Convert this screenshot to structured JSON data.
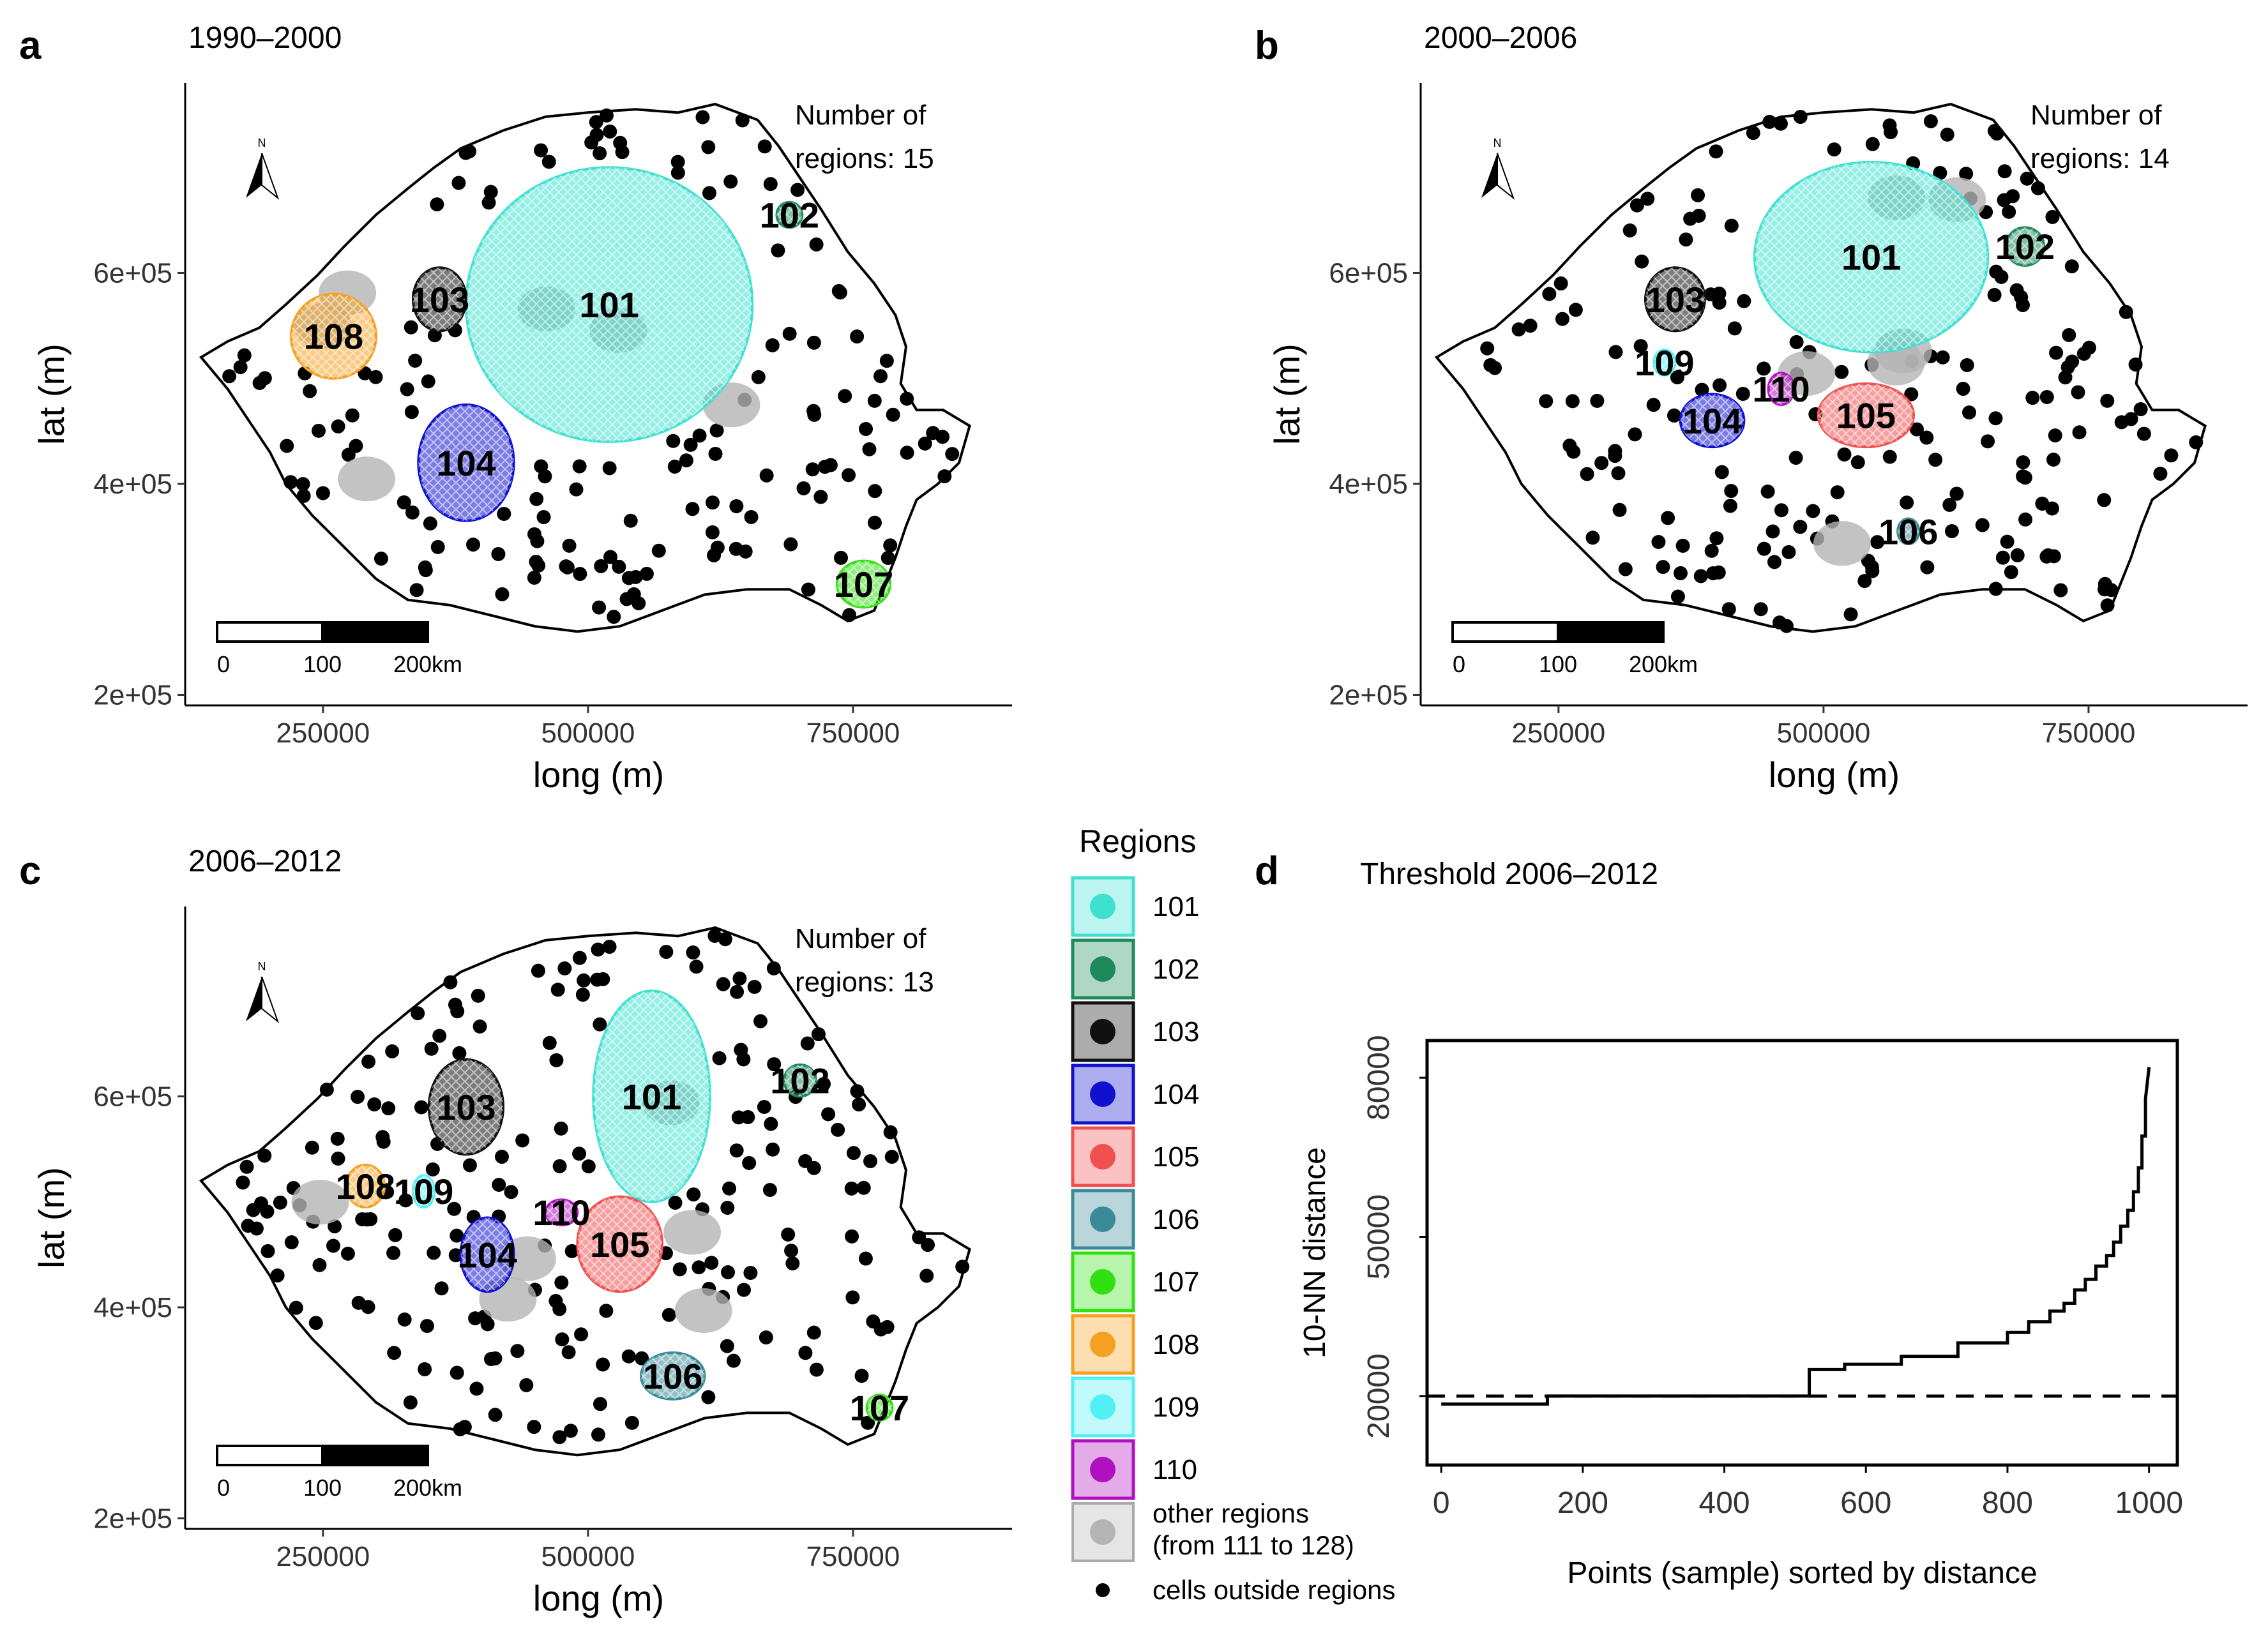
{
  "colors": {
    "101": "#40e0d0",
    "102": "#1e8a5c",
    "103": "#111111",
    "104": "#1010d0",
    "105": "#f05050",
    "106": "#3a8a99",
    "107": "#30e010",
    "108": "#f5a020",
    "109": "#50f0f5",
    "110": "#b010c0",
    "other": "#b4b4b4",
    "outside": "#000000"
  },
  "chart_data": [
    {
      "panel": "a",
      "type": "scatter",
      "title": "1990–2000",
      "xlabel": "long (m)",
      "ylabel": "lat (m)",
      "xticks": [
        "250000",
        "500000",
        "750000"
      ],
      "yticks": [
        "2e+05",
        "4e+05",
        "6e+05"
      ],
      "xlim": [
        120000,
        900000
      ],
      "ylim": [
        190000,
        780000
      ],
      "note_line1": "Number of",
      "note_line2": "regions: 15",
      "scalebar": [
        "0",
        "100",
        "200km"
      ],
      "north": "N",
      "regions": [
        {
          "id": "101",
          "label": "101",
          "cx": 520000,
          "cy": 570000,
          "rx": 135000,
          "ry": 130000
        },
        {
          "id": "102",
          "label": "102",
          "cx": 690000,
          "cy": 655000,
          "rx": 12000,
          "ry": 12000
        },
        {
          "id": "103",
          "label": "103",
          "cx": 360000,
          "cy": 575000,
          "rx": 25000,
          "ry": 30000
        },
        {
          "id": "104",
          "label": "104",
          "cx": 385000,
          "cy": 420000,
          "rx": 45000,
          "ry": 55000
        },
        {
          "id": "107",
          "label": "107",
          "cx": 760000,
          "cy": 305000,
          "rx": 25000,
          "ry": 22000
        },
        {
          "id": "108",
          "label": "108",
          "cx": 260000,
          "cy": 540000,
          "rx": 40000,
          "ry": 40000
        }
      ]
    },
    {
      "panel": "b",
      "type": "scatter",
      "title": "2000–2006",
      "xlabel": "long (m)",
      "ylabel": "lat (m)",
      "xticks": [
        "250000",
        "500000",
        "750000"
      ],
      "yticks": [
        "2e+05",
        "4e+05",
        "6e+05"
      ],
      "xlim": [
        120000,
        900000
      ],
      "ylim": [
        190000,
        780000
      ],
      "note_line1": "Number of",
      "note_line2": "regions: 14",
      "scalebar": [
        "0",
        "100",
        "200km"
      ],
      "north": "N",
      "regions": [
        {
          "id": "101",
          "label": "101",
          "cx": 545000,
          "cy": 615000,
          "rx": 110000,
          "ry": 90000
        },
        {
          "id": "102",
          "label": "102",
          "cx": 690000,
          "cy": 625000,
          "rx": 18000,
          "ry": 18000
        },
        {
          "id": "103",
          "label": "103",
          "cx": 360000,
          "cy": 575000,
          "rx": 28000,
          "ry": 30000
        },
        {
          "id": "104",
          "label": "104",
          "cx": 395000,
          "cy": 460000,
          "rx": 30000,
          "ry": 25000
        },
        {
          "id": "105",
          "label": "105",
          "cx": 540000,
          "cy": 465000,
          "rx": 45000,
          "ry": 30000
        },
        {
          "id": "106",
          "label": "106",
          "cx": 580000,
          "cy": 355000,
          "rx": 10000,
          "ry": 12000
        },
        {
          "id": "109",
          "label": "109",
          "cx": 350000,
          "cy": 515000,
          "rx": 10000,
          "ry": 12000
        },
        {
          "id": "110",
          "label": "110",
          "cx": 460000,
          "cy": 490000,
          "rx": 12000,
          "ry": 15000
        }
      ]
    },
    {
      "panel": "c",
      "type": "scatter",
      "title": "2006–2012",
      "xlabel": "long (m)",
      "ylabel": "lat (m)",
      "xticks": [
        "250000",
        "500000",
        "750000"
      ],
      "yticks": [
        "2e+05",
        "4e+05",
        "6e+05"
      ],
      "xlim": [
        120000,
        900000
      ],
      "ylim": [
        190000,
        780000
      ],
      "note_line1": "Number of",
      "note_line2": "regions: 13",
      "scalebar": [
        "0",
        "100",
        "200km"
      ],
      "north": "N",
      "regions": [
        {
          "id": "101",
          "label": "101",
          "cx": 560000,
          "cy": 600000,
          "rx": 55000,
          "ry": 100000
        },
        {
          "id": "102",
          "label": "102",
          "cx": 700000,
          "cy": 615000,
          "rx": 15000,
          "ry": 15000
        },
        {
          "id": "103",
          "label": "103",
          "cx": 385000,
          "cy": 590000,
          "rx": 35000,
          "ry": 45000
        },
        {
          "id": "104",
          "label": "104",
          "cx": 405000,
          "cy": 450000,
          "rx": 25000,
          "ry": 35000
        },
        {
          "id": "105",
          "label": "105",
          "cx": 530000,
          "cy": 460000,
          "rx": 40000,
          "ry": 45000
        },
        {
          "id": "106",
          "label": "106",
          "cx": 580000,
          "cy": 335000,
          "rx": 30000,
          "ry": 22000
        },
        {
          "id": "107",
          "label": "107",
          "cx": 775000,
          "cy": 305000,
          "rx": 12000,
          "ry": 12000
        },
        {
          "id": "108",
          "label": "108",
          "cx": 290000,
          "cy": 515000,
          "rx": 18000,
          "ry": 20000
        },
        {
          "id": "109",
          "label": "109",
          "cx": 345000,
          "cy": 510000,
          "rx": 10000,
          "ry": 15000
        },
        {
          "id": "110",
          "label": "110",
          "cx": 475000,
          "cy": 490000,
          "rx": 15000,
          "ry": 12000
        }
      ]
    },
    {
      "panel": "d",
      "type": "line",
      "title": "Threshold 2006–2012",
      "xlabel": "Points (sample) sorted by distance",
      "ylabel": "10-NN distance",
      "xlim": [
        -20,
        1040
      ],
      "ylim": [
        7000,
        87000
      ],
      "xticks": [
        0,
        200,
        400,
        600,
        800,
        1000
      ],
      "yticks": [
        20000,
        50000,
        80000
      ],
      "threshold": 20000,
      "x": [
        0,
        150,
        150,
        520,
        520,
        570,
        570,
        650,
        650,
        730,
        730,
        800,
        800,
        830,
        830,
        860,
        860,
        880,
        880,
        895,
        895,
        910,
        910,
        925,
        925,
        940,
        940,
        950,
        950,
        960,
        960,
        970,
        970,
        978,
        978,
        985,
        985,
        990,
        990,
        995,
        995,
        1000
      ],
      "y": [
        18500,
        18500,
        20000,
        20000,
        25000,
        25000,
        26000,
        26000,
        27500,
        27500,
        30000,
        30000,
        32000,
        32000,
        34000,
        34000,
        36000,
        36000,
        37500,
        37500,
        40000,
        40000,
        42000,
        42000,
        44500,
        44500,
        46500,
        46500,
        49000,
        49000,
        52000,
        52000,
        55000,
        55000,
        58500,
        58500,
        63000,
        63000,
        69000,
        69000,
        76000,
        82000
      ]
    }
  ],
  "legend": {
    "title": "Regions",
    "items": [
      {
        "key": "101",
        "label": "101"
      },
      {
        "key": "102",
        "label": "102"
      },
      {
        "key": "103",
        "label": "103"
      },
      {
        "key": "104",
        "label": "104"
      },
      {
        "key": "105",
        "label": "105"
      },
      {
        "key": "106",
        "label": "106"
      },
      {
        "key": "107",
        "label": "107"
      },
      {
        "key": "108",
        "label": "108"
      },
      {
        "key": "109",
        "label": "109"
      },
      {
        "key": "110",
        "label": "110"
      }
    ],
    "other_line1": "other regions",
    "other_line2": "(from 111 to 128)",
    "outside": "cells outside regions"
  }
}
